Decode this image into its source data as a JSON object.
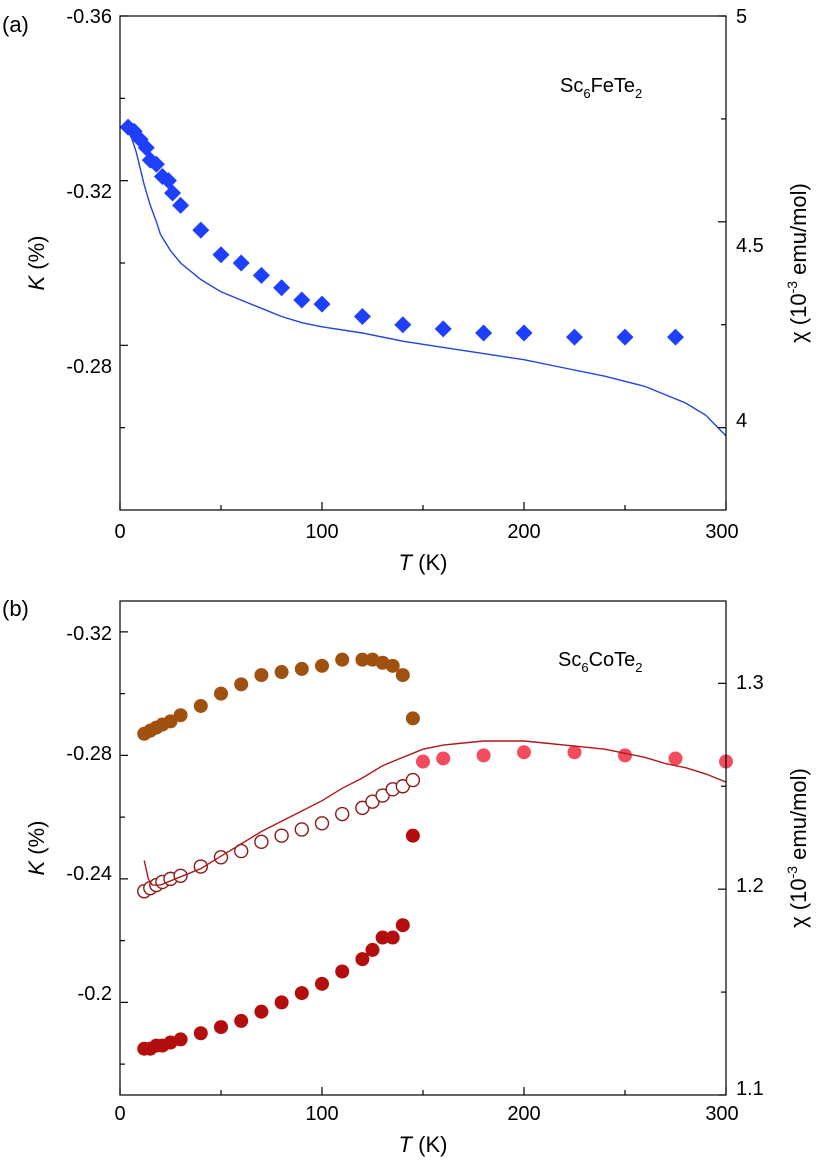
{
  "chart_data": [
    {
      "type": "scatter",
      "panel_label": "(a)",
      "compound": {
        "base": "Sc",
        "sub1": "6",
        "mid": "FeTe",
        "sub2": "2"
      },
      "xlabel": {
        "symbol": "T",
        "unit": " (K)"
      },
      "ylabel_left": {
        "symbol": "K",
        "unit": " (%)"
      },
      "ylabel_right": {
        "prefix": "χ (10",
        "exp": "-3",
        "unit": " emu/mol)"
      },
      "xlim": [
        0,
        300
      ],
      "ylim_left": [
        -0.24,
        -0.36
      ],
      "ylim_right": [
        3.8,
        5.0
      ],
      "xticks": [
        0,
        100,
        200,
        300
      ],
      "xtick_labels": [
        "0",
        "100",
        "200",
        "300"
      ],
      "yticks_left": [
        -0.36,
        -0.32,
        -0.28
      ],
      "ytick_labels_left": [
        "-0.36",
        "-0.32",
        "-0.28"
      ],
      "yticks_right": [
        4.0,
        4.5,
        5.0
      ],
      "ytick_labels_right": [
        "4",
        "4.5",
        "5"
      ],
      "colors": {
        "K": "#1f3fff",
        "chi": "#2244dd"
      },
      "series": [
        {
          "name": "K",
          "marker": "diamond",
          "axis": "left",
          "x": [
            4,
            7,
            10,
            13,
            15,
            18,
            21,
            24,
            26,
            30,
            40,
            50,
            60,
            70,
            80,
            90,
            100,
            120,
            140,
            160,
            180,
            200,
            225,
            250,
            275
          ],
          "y": [
            -0.333,
            -0.332,
            -0.33,
            -0.328,
            -0.325,
            -0.324,
            -0.321,
            -0.32,
            -0.317,
            -0.314,
            -0.308,
            -0.302,
            -0.3,
            -0.297,
            -0.294,
            -0.291,
            -0.29,
            -0.287,
            -0.285,
            -0.284,
            -0.283,
            -0.283,
            -0.282,
            -0.282,
            -0.282
          ]
        },
        {
          "name": "χ",
          "marker": "line",
          "axis": "right",
          "x": [
            4,
            6,
            8,
            10,
            12,
            15,
            18,
            20,
            25,
            30,
            40,
            50,
            60,
            70,
            80,
            90,
            100,
            120,
            140,
            160,
            180,
            200,
            220,
            240,
            260,
            280,
            290,
            300
          ],
          "y": [
            4.72,
            4.7,
            4.67,
            4.63,
            4.59,
            4.54,
            4.5,
            4.47,
            4.43,
            4.4,
            4.36,
            4.33,
            4.31,
            4.29,
            4.27,
            4.255,
            4.245,
            4.23,
            4.21,
            4.195,
            4.18,
            4.165,
            4.145,
            4.125,
            4.1,
            4.06,
            4.03,
            3.98
          ]
        }
      ]
    },
    {
      "type": "scatter",
      "panel_label": "(b)",
      "compound": {
        "base": "Sc",
        "sub1": "6",
        "mid": "CoTe",
        "sub2": "2"
      },
      "xlabel": {
        "symbol": "T",
        "unit": " (K)"
      },
      "ylabel_left": {
        "symbol": "K",
        "unit": " (%)"
      },
      "ylabel_right": {
        "prefix": "χ (10",
        "exp": "-3",
        "unit": " emu/mol)"
      },
      "xlim": [
        0,
        300
      ],
      "ylim_left": [
        -0.17,
        -0.33
      ],
      "ylim_right": [
        1.1,
        1.34
      ],
      "xticks": [
        0,
        100,
        200,
        300
      ],
      "xtick_labels": [
        "0",
        "100",
        "200",
        "300"
      ],
      "yticks_left": [
        -0.32,
        -0.28,
        -0.24,
        -0.2
      ],
      "ytick_labels_left": [
        "-0.32",
        "-0.28",
        "-0.24",
        "-0.2"
      ],
      "yticks_right": [
        1.1,
        1.2,
        1.3
      ],
      "ytick_labels_right": [
        "1.1",
        "1.2",
        "1.3"
      ],
      "colors": {
        "upper": "#a0500f",
        "middle": "#8b1a1a",
        "lower": "#b30d0d",
        "high_T": "#f24c5e",
        "chi": "#b01818"
      },
      "series": [
        {
          "name": "K upper",
          "marker": "circle-filled",
          "axis": "left",
          "x": [
            12,
            15,
            18,
            21,
            25,
            30,
            40,
            50,
            60,
            70,
            80,
            90,
            100,
            110,
            120,
            125,
            130,
            135,
            140,
            145
          ],
          "y": [
            -0.287,
            -0.288,
            -0.289,
            -0.29,
            -0.291,
            -0.293,
            -0.296,
            -0.3,
            -0.303,
            -0.306,
            -0.307,
            -0.308,
            -0.309,
            -0.311,
            -0.311,
            -0.311,
            -0.31,
            -0.309,
            -0.306,
            -0.292
          ]
        },
        {
          "name": "K middle",
          "marker": "circle-open",
          "axis": "left",
          "x": [
            12,
            15,
            18,
            21,
            25,
            30,
            40,
            50,
            60,
            70,
            80,
            90,
            100,
            110,
            120,
            125,
            130,
            135,
            140,
            145
          ],
          "y": [
            -0.236,
            -0.237,
            -0.238,
            -0.239,
            -0.24,
            -0.241,
            -0.244,
            -0.247,
            -0.249,
            -0.252,
            -0.254,
            -0.256,
            -0.258,
            -0.261,
            -0.263,
            -0.265,
            -0.267,
            -0.269,
            -0.27,
            -0.272
          ]
        },
        {
          "name": "K lower",
          "marker": "circle-filled",
          "axis": "left",
          "x": [
            12,
            15,
            18,
            21,
            25,
            30,
            40,
            50,
            60,
            70,
            80,
            90,
            100,
            110,
            120,
            125,
            130,
            135,
            140,
            145
          ],
          "y": [
            -0.185,
            -0.185,
            -0.186,
            -0.186,
            -0.187,
            -0.188,
            -0.19,
            -0.192,
            -0.194,
            -0.197,
            -0.2,
            -0.203,
            -0.206,
            -0.21,
            -0.214,
            -0.217,
            -0.221,
            -0.221,
            -0.225,
            -0.254
          ]
        },
        {
          "name": "K high T",
          "marker": "circle-filled",
          "axis": "left",
          "x": [
            150,
            160,
            180,
            200,
            225,
            250,
            275,
            300
          ],
          "y": [
            -0.278,
            -0.279,
            -0.28,
            -0.281,
            -0.281,
            -0.28,
            -0.279,
            -0.278
          ]
        },
        {
          "name": "χ",
          "marker": "line",
          "axis": "right",
          "x": [
            12,
            14,
            16,
            20,
            25,
            30,
            40,
            50,
            60,
            70,
            80,
            90,
            100,
            110,
            120,
            130,
            140,
            145,
            150,
            160,
            170,
            180,
            190,
            200,
            210,
            220,
            230,
            240,
            250,
            260,
            270,
            280,
            290,
            300
          ],
          "y": [
            1.214,
            1.205,
            1.202,
            1.202,
            1.204,
            1.206,
            1.21,
            1.216,
            1.222,
            1.228,
            1.233,
            1.238,
            1.243,
            1.249,
            1.254,
            1.26,
            1.264,
            1.266,
            1.268,
            1.27,
            1.271,
            1.272,
            1.272,
            1.272,
            1.271,
            1.27,
            1.269,
            1.268,
            1.266,
            1.264,
            1.261,
            1.259,
            1.256,
            1.252
          ]
        }
      ]
    }
  ]
}
